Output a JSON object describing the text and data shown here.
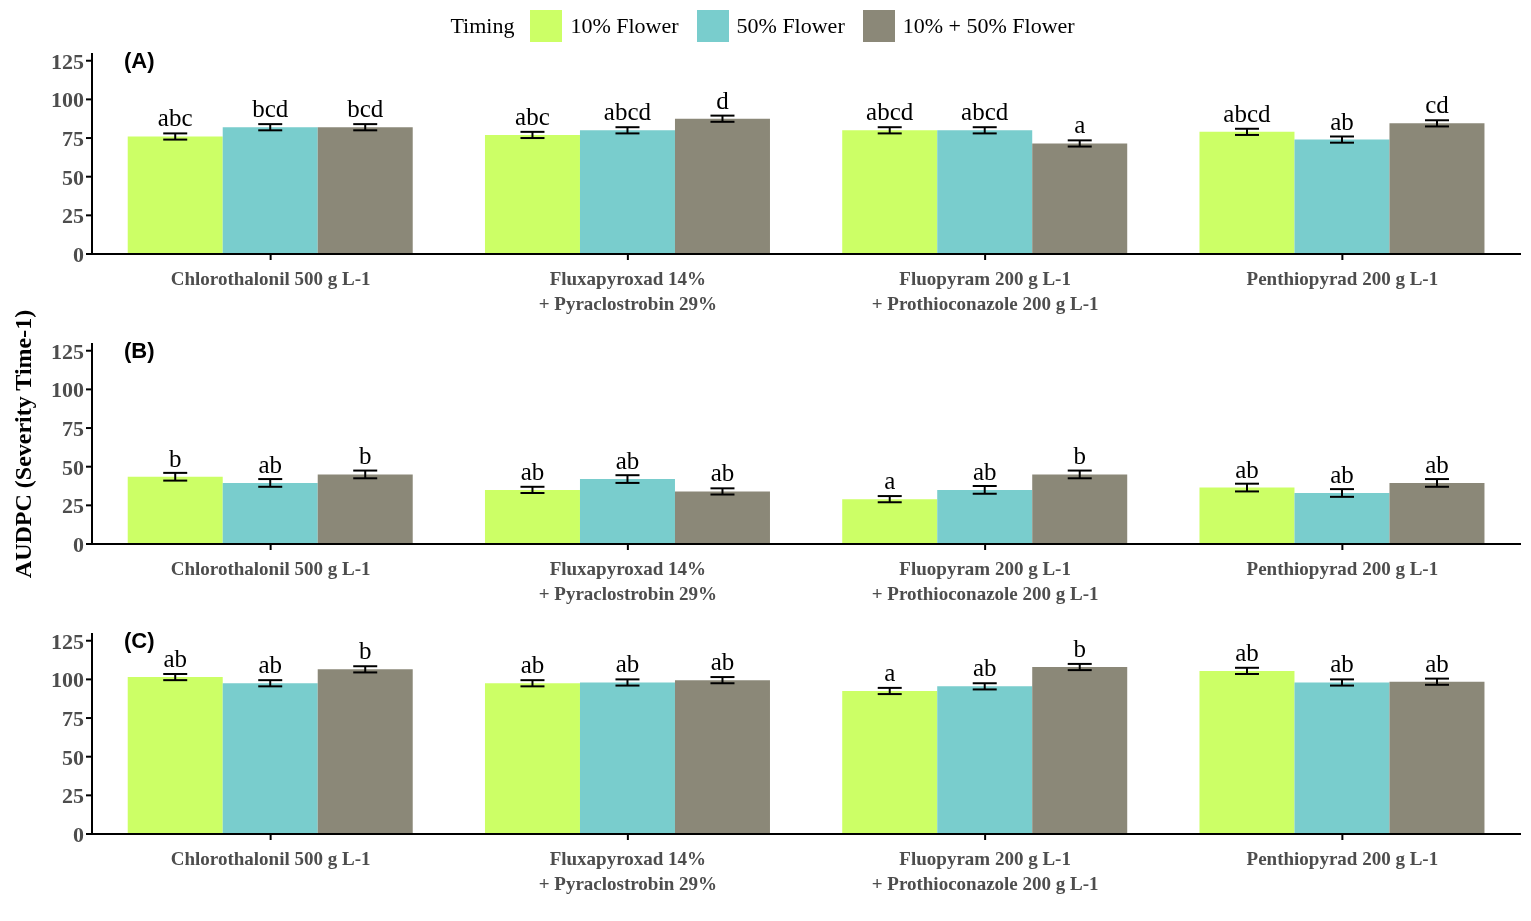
{
  "chart_data": [
    {
      "type": "bar",
      "legend": "top",
      "legend_title": "Timing",
      "annotations": [
        "(A)"
      ],
      "categories": [
        "Chlorothalonil 500 g L-1",
        "Fluxapyroxad 14%\n+ Pyraclostrobin 29%",
        "Fluopyram 200 g L-1\n+ Prothioconazole 200 g L-1",
        "Penthiopyrad 200 g L-1"
      ],
      "ylim": [
        0,
        130
      ],
      "yticks": [
        0,
        25,
        50,
        75,
        100,
        125
      ],
      "grid": false,
      "series": [
        {
          "name": "10% Flower",
          "color": "#ccff66",
          "values": [
            76,
            77,
            80,
            79
          ],
          "errors": [
            2,
            2,
            2,
            2
          ],
          "value_labels": [
            "abc",
            "abc",
            "abcd",
            "abcd"
          ]
        },
        {
          "name": "50% Flower",
          "color": "#79cdcd",
          "values": [
            82,
            80,
            80,
            74
          ],
          "errors": [
            2,
            2,
            2,
            2
          ],
          "value_labels": [
            "bcd",
            "abcd",
            "abcd",
            "ab"
          ]
        },
        {
          "name": "10% + 50% Flower",
          "color": "#8b8878",
          "values": [
            82,
            87.5,
            71.5,
            84.5
          ],
          "errors": [
            2,
            2,
            2,
            2
          ],
          "value_labels": [
            "bcd",
            "d",
            "a",
            "cd"
          ]
        }
      ]
    },
    {
      "type": "bar",
      "ylabel": "AUDPC (Severity Time-1)",
      "annotations": [
        "(B)"
      ],
      "categories": [
        "Chlorothalonil 500 g L-1",
        "Fluxapyroxad 14%\n+ Pyraclostrobin 29%",
        "Fluopyram 200 g L-1\n+ Prothioconazole 200 g L-1",
        "Penthiopyrad 200 g L-1"
      ],
      "ylim": [
        0,
        130
      ],
      "yticks": [
        0,
        25,
        50,
        75,
        100,
        125
      ],
      "grid": false,
      "series": [
        {
          "color": "#ccff66",
          "values": [
            43.5,
            35,
            29,
            36.5
          ],
          "errors": [
            2.5,
            2,
            2,
            2.5
          ],
          "value_labels": [
            "b",
            "ab",
            "a",
            "ab"
          ]
        },
        {
          "color": "#79cdcd",
          "values": [
            39.5,
            42,
            35,
            33
          ],
          "errors": [
            2.5,
            2.5,
            2.5,
            2.5
          ],
          "value_labels": [
            "ab",
            "ab",
            "ab",
            "ab"
          ]
        },
        {
          "color": "#8b8878",
          "values": [
            45,
            34,
            45,
            39.5
          ],
          "errors": [
            2.5,
            2,
            2.5,
            2.5
          ],
          "value_labels": [
            "b",
            "ab",
            "b",
            "ab"
          ]
        }
      ]
    },
    {
      "type": "bar",
      "annotations": [
        "(C)"
      ],
      "categories": [
        "Chlorothalonil 500 g L-1",
        "Fluxapyroxad 14%\n+ Pyraclostrobin 29%",
        "Fluopyram 200 g L-1\n+ Prothioconazole 200 g L-1",
        "Penthiopyrad 200 g L-1"
      ],
      "ylim": [
        0,
        130
      ],
      "yticks": [
        0,
        25,
        50,
        75,
        100,
        125
      ],
      "grid": false,
      "series": [
        {
          "color": "#ccff66",
          "values": [
            101.5,
            97.5,
            92.5,
            105.5
          ],
          "errors": [
            2,
            2,
            2,
            2
          ],
          "value_labels": [
            "ab",
            "ab",
            "a",
            "ab"
          ]
        },
        {
          "color": "#79cdcd",
          "values": [
            97.5,
            98,
            95.5,
            98
          ],
          "errors": [
            2,
            2,
            2,
            2
          ],
          "value_labels": [
            "ab",
            "ab",
            "ab",
            "ab"
          ]
        },
        {
          "color": "#8b8878",
          "values": [
            106.5,
            99.5,
            108,
            98.5
          ],
          "errors": [
            2,
            2,
            2,
            2
          ],
          "value_labels": [
            "b",
            "ab",
            "b",
            "ab"
          ]
        }
      ]
    }
  ]
}
